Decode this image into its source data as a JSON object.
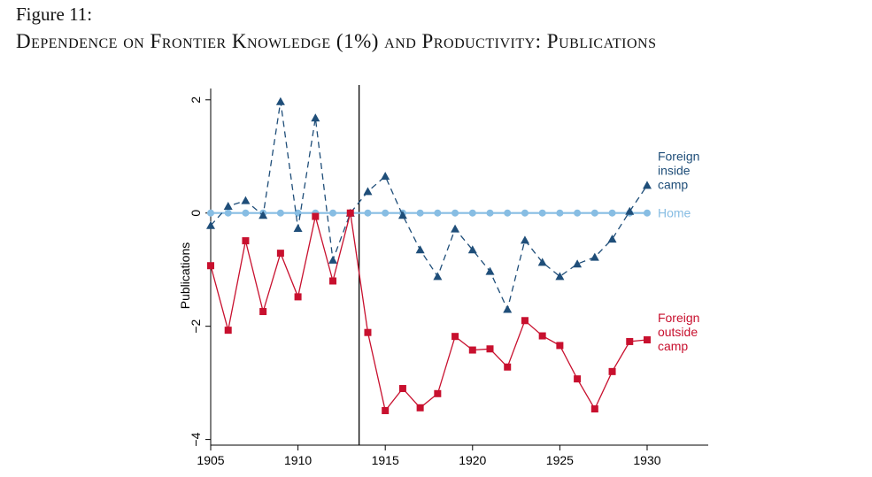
{
  "figure": {
    "label": "Figure 11:",
    "title": "Dependence on Frontier Knowledge (1%) and Productivity: Publications"
  },
  "chart_data": {
    "type": "line",
    "ylabel": "Publications",
    "xlabel": "",
    "xlim": [
      1905,
      1933.5
    ],
    "ylim": [
      -4.1,
      2.2
    ],
    "xticks": [
      1905,
      1910,
      1915,
      1920,
      1925,
      1930
    ],
    "yticks": [
      2,
      0,
      -2,
      -4
    ],
    "ytick_labels": [
      "2",
      "0",
      "−2",
      "−4"
    ],
    "vline_x": 1913.5,
    "grid": false,
    "series": [
      {
        "name": "Foreign inside camp",
        "label_lines": [
          "Foreign",
          "inside",
          "camp"
        ],
        "color": "#1f4e79",
        "style": "dashed",
        "marker": "triangle",
        "x": [
          1905,
          1906,
          1907,
          1908,
          1909,
          1910,
          1911,
          1912,
          1913,
          1914,
          1915,
          1916,
          1917,
          1918,
          1919,
          1920,
          1921,
          1922,
          1923,
          1924,
          1925,
          1926,
          1927,
          1928,
          1929,
          1930
        ],
        "y": [
          -0.22,
          0.12,
          0.22,
          -0.04,
          1.97,
          -0.27,
          1.68,
          -0.83,
          0.0,
          0.38,
          0.65,
          -0.04,
          -0.65,
          -1.12,
          -0.28,
          -0.65,
          -1.03,
          -1.7,
          -0.48,
          -0.87,
          -1.12,
          -0.9,
          -0.78,
          -0.46,
          0.03,
          0.49
        ]
      },
      {
        "name": "Home",
        "label_lines": [
          "Home"
        ],
        "color": "#87bde3",
        "style": "solid",
        "marker": "circle",
        "x": [
          1905,
          1906,
          1907,
          1908,
          1909,
          1910,
          1911,
          1912,
          1913,
          1914,
          1915,
          1916,
          1917,
          1918,
          1919,
          1920,
          1921,
          1922,
          1923,
          1924,
          1925,
          1926,
          1927,
          1928,
          1929,
          1930
        ],
        "y": [
          0,
          0,
          0,
          0,
          0,
          0,
          0,
          0,
          0,
          0,
          0,
          0,
          0,
          0,
          0,
          0,
          0,
          0,
          0,
          0,
          0,
          0,
          0,
          0,
          0,
          0
        ]
      },
      {
        "name": "Foreign outside camp",
        "label_lines": [
          "Foreign",
          "outside",
          "camp"
        ],
        "color": "#c8102e",
        "style": "solid",
        "marker": "square",
        "x": [
          1905,
          1906,
          1907,
          1908,
          1909,
          1910,
          1911,
          1912,
          1913,
          1914,
          1915,
          1916,
          1917,
          1918,
          1919,
          1920,
          1921,
          1922,
          1923,
          1924,
          1925,
          1926,
          1927,
          1928,
          1929,
          1930
        ],
        "y": [
          -0.93,
          -2.07,
          -0.49,
          -1.74,
          -0.71,
          -1.48,
          -0.06,
          -1.2,
          0.0,
          -2.11,
          -3.49,
          -3.1,
          -3.44,
          -3.19,
          -2.18,
          -2.42,
          -2.4,
          -2.72,
          -1.9,
          -2.17,
          -2.34,
          -2.93,
          -3.46,
          -2.8,
          -2.27,
          -2.24
        ]
      }
    ]
  }
}
